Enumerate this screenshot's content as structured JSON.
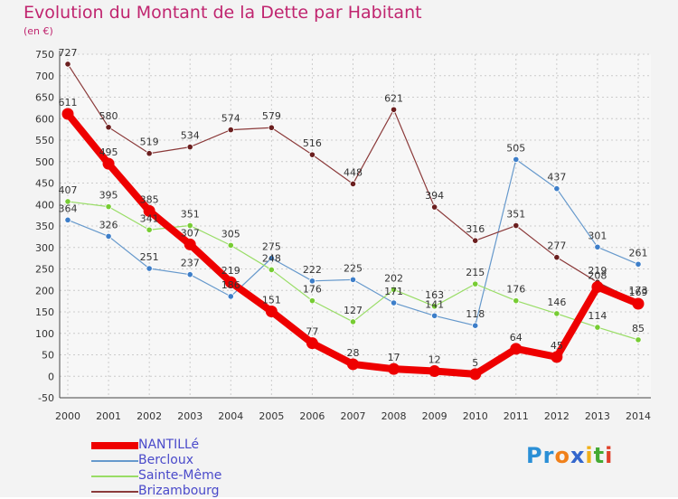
{
  "header": {
    "title": "Evolution du Montant de la Dette par Habitant",
    "subtitle": "(en €)"
  },
  "logo": {
    "text": "Proxiti"
  },
  "colors": {
    "background": "#f3f3f3",
    "title": "#c0256f",
    "grid": "#cccccc",
    "legend_text": "#4a4aca"
  },
  "chart_data": {
    "type": "line",
    "title": "Evolution du Montant de la Dette par Habitant",
    "subtitle": "(en €)",
    "xlabel": "",
    "ylabel": "",
    "x": [
      "2000",
      "2001",
      "2002",
      "2003",
      "2004",
      "2005",
      "2006",
      "2007",
      "2008",
      "2009",
      "2010",
      "2011",
      "2012",
      "2013",
      "2014"
    ],
    "ylim": [
      -50,
      750
    ],
    "yticks": [
      -50,
      0,
      50,
      100,
      150,
      200,
      250,
      300,
      350,
      400,
      450,
      500,
      550,
      600,
      650,
      700,
      750
    ],
    "grid": true,
    "legend_position": "bottom-left",
    "series": [
      {
        "name": "NANTILLé",
        "color": "#ee0000",
        "marker": "#ee0000",
        "values": [
          611,
          495,
          385,
          307,
          219,
          151,
          77,
          28,
          17,
          12,
          5,
          64,
          45,
          208,
          169
        ]
      },
      {
        "name": "Bercloux",
        "color": "#6699cc",
        "marker": "#3d7ec9",
        "values": [
          364,
          326,
          251,
          237,
          186,
          275,
          222,
          225,
          171,
          141,
          118,
          505,
          437,
          301,
          261
        ]
      },
      {
        "name": "Sainte-Même",
        "color": "#99dd66",
        "marker": "#77cc33",
        "values": [
          407,
          395,
          341,
          351,
          305,
          248,
          176,
          127,
          202,
          163,
          215,
          176,
          146,
          114,
          85
        ]
      },
      {
        "name": "Brizambourg",
        "color": "#8b3a3a",
        "marker": "#6b1f1f",
        "values": [
          727,
          580,
          519,
          534,
          574,
          579,
          516,
          448,
          621,
          394,
          316,
          351,
          277,
          219,
          173
        ]
      }
    ],
    "data_labels": {
      "NANTILLé": [
        "611",
        "495",
        "385",
        "307",
        "219",
        "151",
        "77",
        "28",
        "17",
        "12",
        "5",
        "64",
        "45",
        "208",
        "169"
      ],
      "Bercloux": [
        "364",
        "326",
        "251",
        "237",
        "186",
        "275",
        "222",
        "225",
        "171",
        "141",
        "118",
        "505",
        "437",
        "301",
        "261"
      ],
      "Sainte-Même": [
        "407",
        "395",
        "341",
        "351",
        "305",
        "248",
        "176",
        "127",
        "202",
        "163",
        "215",
        "176",
        "146",
        "114",
        "85"
      ],
      "Brizambourg": [
        "727",
        "580",
        "519",
        "534",
        "574",
        "579",
        "516",
        "448",
        "621",
        "394",
        "316",
        "351",
        "277",
        "219",
        "173"
      ]
    }
  }
}
